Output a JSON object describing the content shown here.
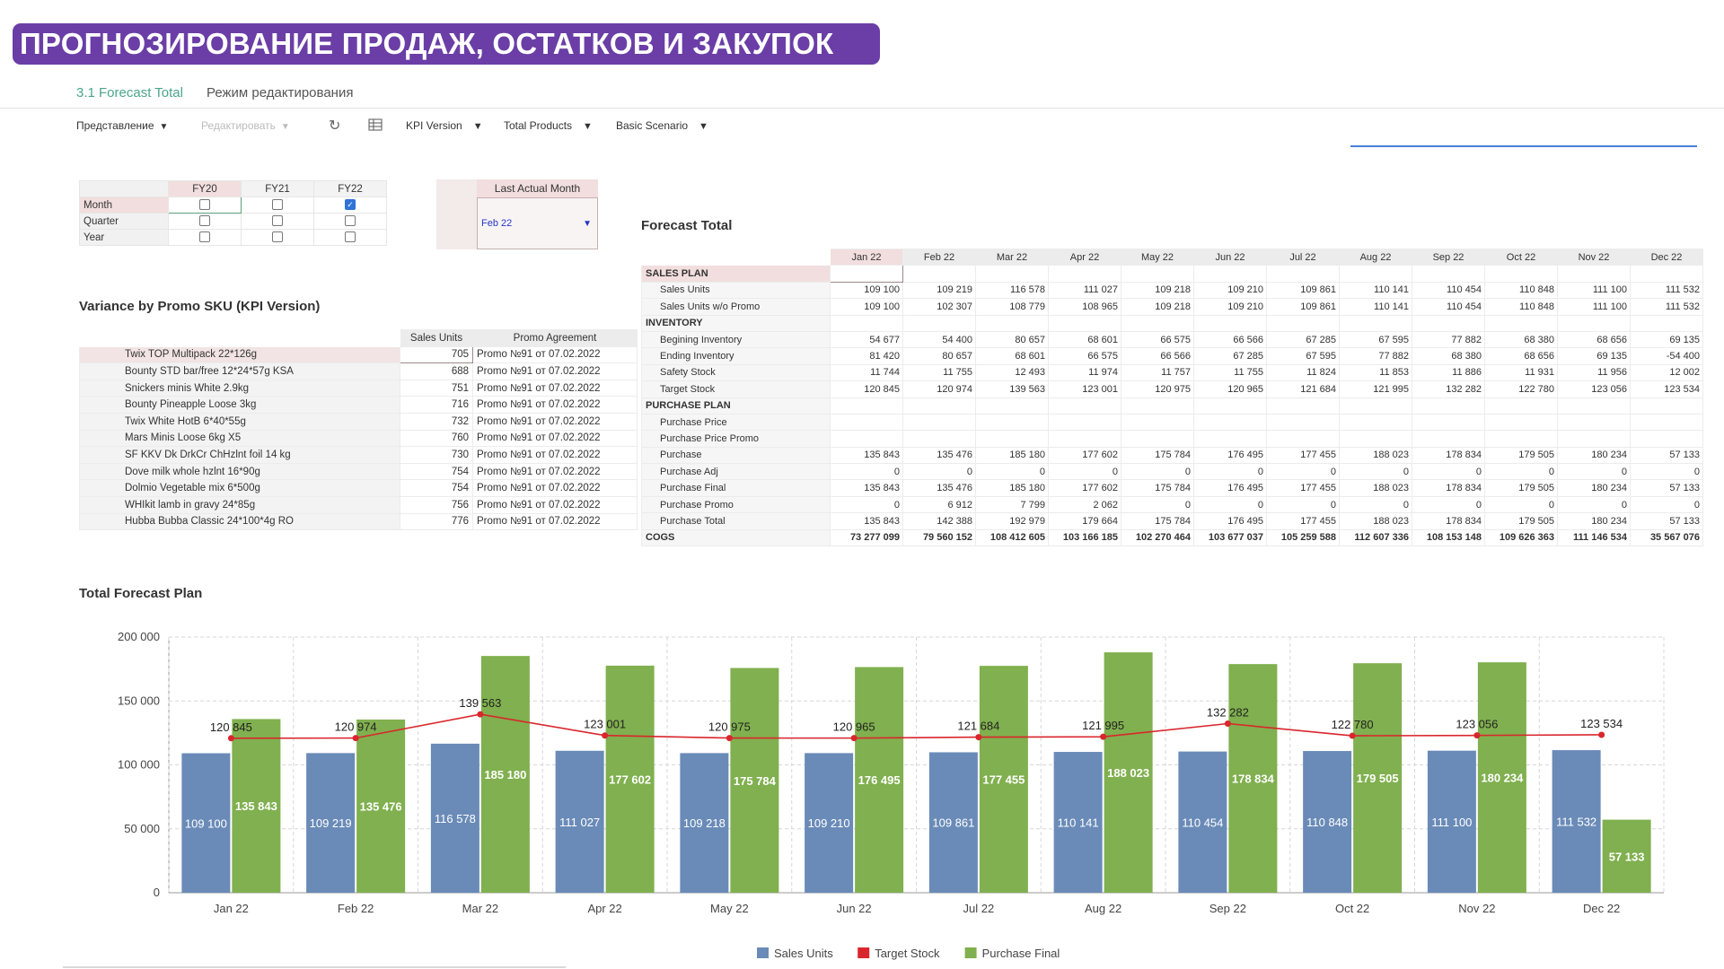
{
  "banner": {
    "title": "ПРОГНОЗИРОВАНИЕ ПРОДАЖ, ОСТАТКОВ И ЗАКУПОК"
  },
  "tabs": [
    {
      "label": "3.1 Forecast Total"
    },
    {
      "label": "Режим редактирования"
    }
  ],
  "toolbar": {
    "view": "Представление",
    "edit": "Редактировать",
    "kpi_version": "KPI Version",
    "products": "Total Products",
    "scenario": "Basic Scenario"
  },
  "selector": {
    "columns": [
      "FY20",
      "FY21",
      "FY22"
    ],
    "rows": [
      {
        "label": "Month",
        "checked": [
          false,
          false,
          true
        ]
      },
      {
        "label": "Quarter",
        "checked": [
          false,
          false,
          false
        ]
      },
      {
        "label": "Year",
        "checked": [
          false,
          false,
          false
        ]
      }
    ]
  },
  "last_actual_month": {
    "label": "Last Actual Month",
    "value": "Feb 22"
  },
  "promo": {
    "title": "Variance by Promo SKU (KPI Version)",
    "headers": [
      "Sales Units",
      "Promo Agreement"
    ],
    "rows": [
      {
        "sku": "Twix TOP Multipack 22*126g",
        "units": "705",
        "agreement": "Promo №91 от 07.02.2022"
      },
      {
        "sku": "Bounty STD bar/free 12*24*57g KSA",
        "units": "688",
        "agreement": "Promo №91 от 07.02.2022"
      },
      {
        "sku": "Snickers minis White 2.9kg",
        "units": "751",
        "agreement": "Promo №91 от 07.02.2022"
      },
      {
        "sku": "Bounty Pineapple Loose 3kg",
        "units": "716",
        "agreement": "Promo №91 от 07.02.2022"
      },
      {
        "sku": "Twix White HotB 6*40*55g",
        "units": "732",
        "agreement": "Promo №91 от 07.02.2022"
      },
      {
        "sku": "Mars Minis Loose 6kg X5",
        "units": "760",
        "agreement": "Promo №91 от 07.02.2022"
      },
      {
        "sku": "SF KKV Dk DrkCr ChHzlnt foil 14 kg",
        "units": "730",
        "agreement": "Promo №91 от 07.02.2022"
      },
      {
        "sku": "Dove milk whole hzlnt 16*90g",
        "units": "754",
        "agreement": "Promo №91 от 07.02.2022"
      },
      {
        "sku": "Dolmio Vegetable mix 6*500g",
        "units": "754",
        "agreement": "Promo №91 от 07.02.2022"
      },
      {
        "sku": "WHIkit lamb in gravy 24*85g",
        "units": "756",
        "agreement": "Promo №91 от 07.02.2022"
      },
      {
        "sku": "Hubba Bubba Classic 24*100*4g RO",
        "units": "776",
        "agreement": "Promo №91 от 07.02.2022"
      }
    ]
  },
  "forecast": {
    "title": "Forecast Total",
    "months": [
      "Jan 22",
      "Feb 22",
      "Mar 22",
      "Apr 22",
      "May 22",
      "Jun 22",
      "Jul 22",
      "Aug 22",
      "Sep 22",
      "Oct 22",
      "Nov 22",
      "Dec 22"
    ],
    "rows": [
      {
        "label": "SALES PLAN",
        "section": true,
        "values": []
      },
      {
        "label": "Sales Units",
        "values": [
          "109 100",
          "109 219",
          "116 578",
          "111 027",
          "109 218",
          "109 210",
          "109 861",
          "110 141",
          "110 454",
          "110 848",
          "111 100",
          "111 532"
        ]
      },
      {
        "label": "Sales Units w/o Promo",
        "values": [
          "109 100",
          "102 307",
          "108 779",
          "108 965",
          "109 218",
          "109 210",
          "109 861",
          "110 141",
          "110 454",
          "110 848",
          "111 100",
          "111 532"
        ]
      },
      {
        "label": "INVENTORY",
        "section": true,
        "values": []
      },
      {
        "label": "Begining Inventory",
        "values": [
          "54 677",
          "54 400",
          "80 657",
          "68 601",
          "66 575",
          "66 566",
          "67 285",
          "67 595",
          "77 882",
          "68 380",
          "68 656",
          "69 135"
        ]
      },
      {
        "label": "Ending Inventory",
        "values": [
          "81 420",
          "80 657",
          "68 601",
          "66 575",
          "66 566",
          "67 285",
          "67 595",
          "77 882",
          "68 380",
          "68 656",
          "69 135",
          "-54 400"
        ]
      },
      {
        "label": "Safety Stock",
        "values": [
          "11 744",
          "11 755",
          "12 493",
          "11 974",
          "11 757",
          "11 755",
          "11 824",
          "11 853",
          "11 886",
          "11 931",
          "11 956",
          "12 002"
        ]
      },
      {
        "label": "Target Stock",
        "values": [
          "120 845",
          "120 974",
          "139 563",
          "123 001",
          "120 975",
          "120 965",
          "121 684",
          "121 995",
          "132 282",
          "122 780",
          "123 056",
          "123 534"
        ]
      },
      {
        "label": "PURCHASE PLAN",
        "section": true,
        "values": []
      },
      {
        "label": "Purchase Price",
        "values": [
          "",
          "",
          "",
          "",
          "",
          "",
          "",
          "",
          "",
          "",
          "",
          ""
        ]
      },
      {
        "label": "Purchase Price Promo",
        "values": [
          "",
          "",
          "",
          "",
          "",
          "",
          "",
          "",
          "",
          "",
          "",
          ""
        ]
      },
      {
        "label": "Purchase",
        "values": [
          "135 843",
          "135 476",
          "185 180",
          "177 602",
          "175 784",
          "176 495",
          "177 455",
          "188 023",
          "178 834",
          "179 505",
          "180 234",
          "57 133"
        ]
      },
      {
        "label": "Purchase Adj",
        "values": [
          "0",
          "0",
          "0",
          "0",
          "0",
          "0",
          "0",
          "0",
          "0",
          "0",
          "0",
          "0"
        ]
      },
      {
        "label": "Purchase Final",
        "values": [
          "135 843",
          "135 476",
          "185 180",
          "177 602",
          "175 784",
          "176 495",
          "177 455",
          "188 023",
          "178 834",
          "179 505",
          "180 234",
          "57 133"
        ]
      },
      {
        "label": "Purchase Promo",
        "values": [
          "0",
          "6 912",
          "7 799",
          "2 062",
          "0",
          "0",
          "0",
          "0",
          "0",
          "0",
          "0",
          "0"
        ]
      },
      {
        "label": "Purchase Total",
        "values": [
          "135 843",
          "142 388",
          "192 979",
          "179 664",
          "175 784",
          "176 495",
          "177 455",
          "188 023",
          "178 834",
          "179 505",
          "180 234",
          "57 133"
        ]
      },
      {
        "label": "COGS",
        "section": true,
        "cogs": true,
        "values": [
          "73 277 099",
          "79 560 152",
          "108 412 605",
          "103 166 185",
          "102 270 464",
          "103 677 037",
          "105 259 588",
          "112 607 336",
          "108 153 148",
          "109 626 363",
          "111 146 534",
          "35 567 076"
        ]
      }
    ]
  },
  "chart_title": "Total Forecast Plan",
  "chart_data": {
    "type": "bar",
    "title": "Total Forecast Plan",
    "categories": [
      "Jan 22",
      "Feb 22",
      "Mar 22",
      "Apr 22",
      "May 22",
      "Jun 22",
      "Jul 22",
      "Aug 22",
      "Sep 22",
      "Oct 22",
      "Nov 22",
      "Dec 22"
    ],
    "series": [
      {
        "name": "Sales Units",
        "kind": "bar",
        "color": "#6a8bb8",
        "values": [
          109100,
          109219,
          116578,
          111027,
          109218,
          109210,
          109861,
          110141,
          110454,
          110848,
          111100,
          111532
        ]
      },
      {
        "name": "Target Stock",
        "kind": "line",
        "color": "#d9262c",
        "values": [
          120845,
          120974,
          139563,
          123001,
          120975,
          120965,
          121684,
          121995,
          132282,
          122780,
          123056,
          123534
        ]
      },
      {
        "name": "Purchase Final",
        "kind": "bar",
        "color": "#80b04f",
        "values": [
          135843,
          135476,
          185180,
          177602,
          175784,
          176495,
          177455,
          188023,
          178834,
          179505,
          180234,
          57133
        ]
      }
    ],
    "yticks": [
      "0",
      "50 000",
      "100 000",
      "150 000",
      "200 000"
    ],
    "ylim": [
      0,
      200000
    ],
    "legend_position": "bottom",
    "grid": true
  }
}
